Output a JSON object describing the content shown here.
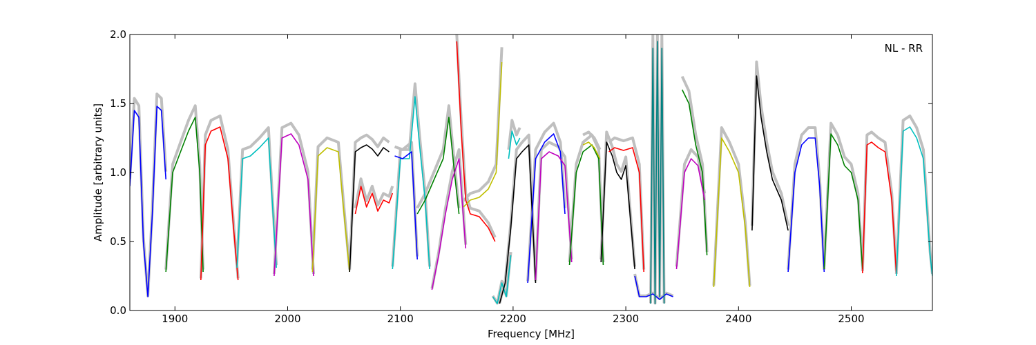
{
  "chart_data": {
    "type": "line",
    "title": "",
    "xlabel": "Frequency [MHz]",
    "ylabel": "Amplitude [arbitrary units]",
    "xlim": [
      1860,
      2572
    ],
    "ylim": [
      0,
      2.0
    ],
    "xticks": [
      1900,
      2000,
      2100,
      2200,
      2300,
      2400,
      2500
    ],
    "xtick_labels": [
      "1900",
      "2000",
      "2100",
      "2200",
      "2300",
      "2400",
      "2500"
    ],
    "yticks": [
      0,
      0.5,
      1.0,
      1.5,
      2.0
    ],
    "ytick_labels": [
      "0.0",
      "0.5",
      "1.0",
      "1.5",
      "2.0"
    ],
    "grid": false,
    "annotation": "NL - RR",
    "background_series_color": "#bfbfbf",
    "series": [
      {
        "color": "#0000ff",
        "x": [
          1860,
          1864,
          1868,
          1872,
          1876,
          1880,
          1884,
          1888,
          1892
        ],
        "y": [
          0.9,
          1.45,
          1.4,
          0.5,
          0.1,
          0.7,
          1.48,
          1.45,
          0.95
        ]
      },
      {
        "color": "#008000",
        "x": [
          1892,
          1898,
          1905,
          1912,
          1918,
          1922,
          1925
        ],
        "y": [
          0.28,
          1.0,
          1.15,
          1.3,
          1.4,
          1.0,
          0.28
        ]
      },
      {
        "color": "#ff0000",
        "x": [
          1923,
          1927,
          1932,
          1940,
          1947,
          1952,
          1956
        ],
        "y": [
          0.22,
          1.2,
          1.3,
          1.33,
          1.1,
          0.6,
          0.22
        ]
      },
      {
        "color": "#00bfbf",
        "x": [
          1955,
          1960,
          1967,
          1975,
          1983,
          1987,
          1990
        ],
        "y": [
          0.31,
          1.1,
          1.12,
          1.18,
          1.25,
          0.7,
          0.31
        ]
      },
      {
        "color": "#bf00bf",
        "x": [
          1988,
          1995,
          2003,
          2010,
          2018,
          2023
        ],
        "y": [
          0.25,
          1.25,
          1.28,
          1.2,
          0.95,
          0.25
        ]
      },
      {
        "color": "#bfbf00",
        "x": [
          2022,
          2027,
          2035,
          2045,
          2050,
          2055
        ],
        "y": [
          0.28,
          1.12,
          1.18,
          1.15,
          0.7,
          0.28
        ]
      },
      {
        "color": "#000000",
        "x": [
          2055,
          2060,
          2065,
          2070,
          2075,
          2080,
          2085,
          2090
        ],
        "y": [
          0.28,
          1.15,
          1.18,
          1.2,
          1.17,
          1.12,
          1.18,
          1.15
        ]
      },
      {
        "color": "#ff0000",
        "x": [
          2060,
          2065,
          2070,
          2075,
          2080,
          2085,
          2090,
          2093
        ],
        "y": [
          0.7,
          0.9,
          0.75,
          0.85,
          0.72,
          0.8,
          0.78,
          0.85
        ]
      },
      {
        "color": "#00bfbf",
        "x": [
          2093,
          2100,
          2108,
          2113,
          2117,
          2122,
          2126
        ],
        "y": [
          0.3,
          1.1,
          1.1,
          1.55,
          1.2,
          0.8,
          0.3
        ]
      },
      {
        "color": "#0000ff",
        "x": [
          2095,
          2102,
          2110,
          2115
        ],
        "y": [
          1.12,
          1.1,
          1.15,
          0.37
        ]
      },
      {
        "color": "#008000",
        "x": [
          2115,
          2122,
          2130,
          2138,
          2143,
          2148,
          2152
        ],
        "y": [
          0.7,
          0.8,
          0.95,
          1.1,
          1.4,
          1.0,
          0.7
        ]
      },
      {
        "color": "#bf00bf",
        "x": [
          2128,
          2134,
          2140,
          2146,
          2152,
          2158
        ],
        "y": [
          0.15,
          0.4,
          0.7,
          0.95,
          1.1,
          0.45
        ]
      },
      {
        "color": "#ff0000",
        "x": [
          2150,
          2154,
          2158,
          2162,
          2170,
          2178,
          2184
        ],
        "y": [
          1.95,
          1.3,
          0.8,
          0.7,
          0.68,
          0.6,
          0.5
        ]
      },
      {
        "color": "#bfbf00",
        "x": [
          2156,
          2162,
          2170,
          2178,
          2185,
          2190
        ],
        "y": [
          0.75,
          0.8,
          0.82,
          0.88,
          1.0,
          1.8
        ]
      },
      {
        "color": "#00bfbf",
        "x": [
          2182,
          2186,
          2190,
          2194,
          2198
        ],
        "y": [
          0.1,
          0.05,
          0.2,
          0.1,
          0.4
        ]
      },
      {
        "color": "#000000",
        "x": [
          2188,
          2193,
          2198,
          2203,
          2208,
          2214,
          2220
        ],
        "y": [
          0.05,
          0.2,
          0.6,
          1.1,
          1.15,
          1.2,
          0.2
        ]
      },
      {
        "color": "#00bfbf",
        "x": [
          2196,
          2199,
          2203,
          2206
        ],
        "y": [
          1.1,
          1.3,
          1.2,
          1.25
        ]
      },
      {
        "color": "#0000ff",
        "x": [
          2213,
          2220,
          2228,
          2236,
          2242,
          2246
        ],
        "y": [
          0.2,
          1.1,
          1.22,
          1.28,
          1.15,
          0.7
        ]
      },
      {
        "color": "#bf00bf",
        "x": [
          2220,
          2225,
          2232,
          2240,
          2246,
          2252
        ],
        "y": [
          0.22,
          1.1,
          1.15,
          1.12,
          1.05,
          0.35
        ]
      },
      {
        "color": "#008000",
        "x": [
          2250,
          2256,
          2262,
          2270,
          2276,
          2280
        ],
        "y": [
          0.33,
          1.0,
          1.15,
          1.2,
          1.1,
          0.33
        ]
      },
      {
        "color": "#bfbf00",
        "x": [
          2262,
          2267,
          2272,
          2277
        ],
        "y": [
          1.2,
          1.22,
          1.18,
          1.1
        ]
      },
      {
        "color": "#000000",
        "x": [
          2278,
          2283,
          2288,
          2292,
          2296,
          2300,
          2308
        ],
        "y": [
          0.35,
          1.22,
          1.12,
          1.0,
          0.95,
          1.05,
          0.3
        ]
      },
      {
        "color": "#ff0000",
        "x": [
          2285,
          2290,
          2298,
          2306,
          2312,
          2316
        ],
        "y": [
          1.15,
          1.18,
          1.16,
          1.18,
          1.0,
          0.28
        ]
      },
      {
        "color": "#0000ff",
        "x": [
          2308,
          2312,
          2318,
          2324,
          2330,
          2336,
          2342
        ],
        "y": [
          0.25,
          0.1,
          0.1,
          0.12,
          0.08,
          0.12,
          0.1
        ]
      },
      {
        "color": "#008080",
        "x": [
          2322,
          2324,
          2326,
          2328,
          2330,
          2332,
          2334
        ],
        "y": [
          0.05,
          1.9,
          0.05,
          1.95,
          0.1,
          1.9,
          0.05
        ]
      },
      {
        "color": "#008000",
        "x": [
          2350,
          2356,
          2362,
          2368,
          2372
        ],
        "y": [
          1.6,
          1.5,
          1.2,
          1.0,
          0.4
        ]
      },
      {
        "color": "#bf00bf",
        "x": [
          2345,
          2352,
          2358,
          2364,
          2370
        ],
        "y": [
          0.3,
          1.0,
          1.1,
          1.05,
          0.8
        ]
      },
      {
        "color": "#bfbf00",
        "x": [
          2378,
          2385,
          2392,
          2400,
          2406,
          2410
        ],
        "y": [
          0.17,
          1.25,
          1.15,
          1.0,
          0.6,
          0.17
        ]
      },
      {
        "color": "#000000",
        "x": [
          2412,
          2416,
          2420,
          2425,
          2430,
          2438,
          2444
        ],
        "y": [
          0.58,
          1.7,
          1.4,
          1.15,
          0.95,
          0.8,
          0.58
        ]
      },
      {
        "color": "#0000ff",
        "x": [
          2444,
          2450,
          2456,
          2462,
          2468,
          2472,
          2476
        ],
        "y": [
          0.28,
          1.0,
          1.2,
          1.25,
          1.25,
          0.9,
          0.28
        ]
      },
      {
        "color": "#008000",
        "x": [
          2476,
          2482,
          2488,
          2494,
          2500,
          2506,
          2510
        ],
        "y": [
          0.3,
          1.28,
          1.2,
          1.05,
          1.0,
          0.8,
          0.3
        ]
      },
      {
        "color": "#ff0000",
        "x": [
          2510,
          2514,
          2518,
          2524,
          2530,
          2536,
          2540
        ],
        "y": [
          0.27,
          1.2,
          1.22,
          1.18,
          1.15,
          0.8,
          0.27
        ]
      },
      {
        "color": "#00bfbf",
        "x": [
          2540,
          2546,
          2552,
          2558,
          2564,
          2570,
          2572
        ],
        "y": [
          0.25,
          1.3,
          1.33,
          1.25,
          1.1,
          0.4,
          0.25
        ]
      }
    ]
  }
}
